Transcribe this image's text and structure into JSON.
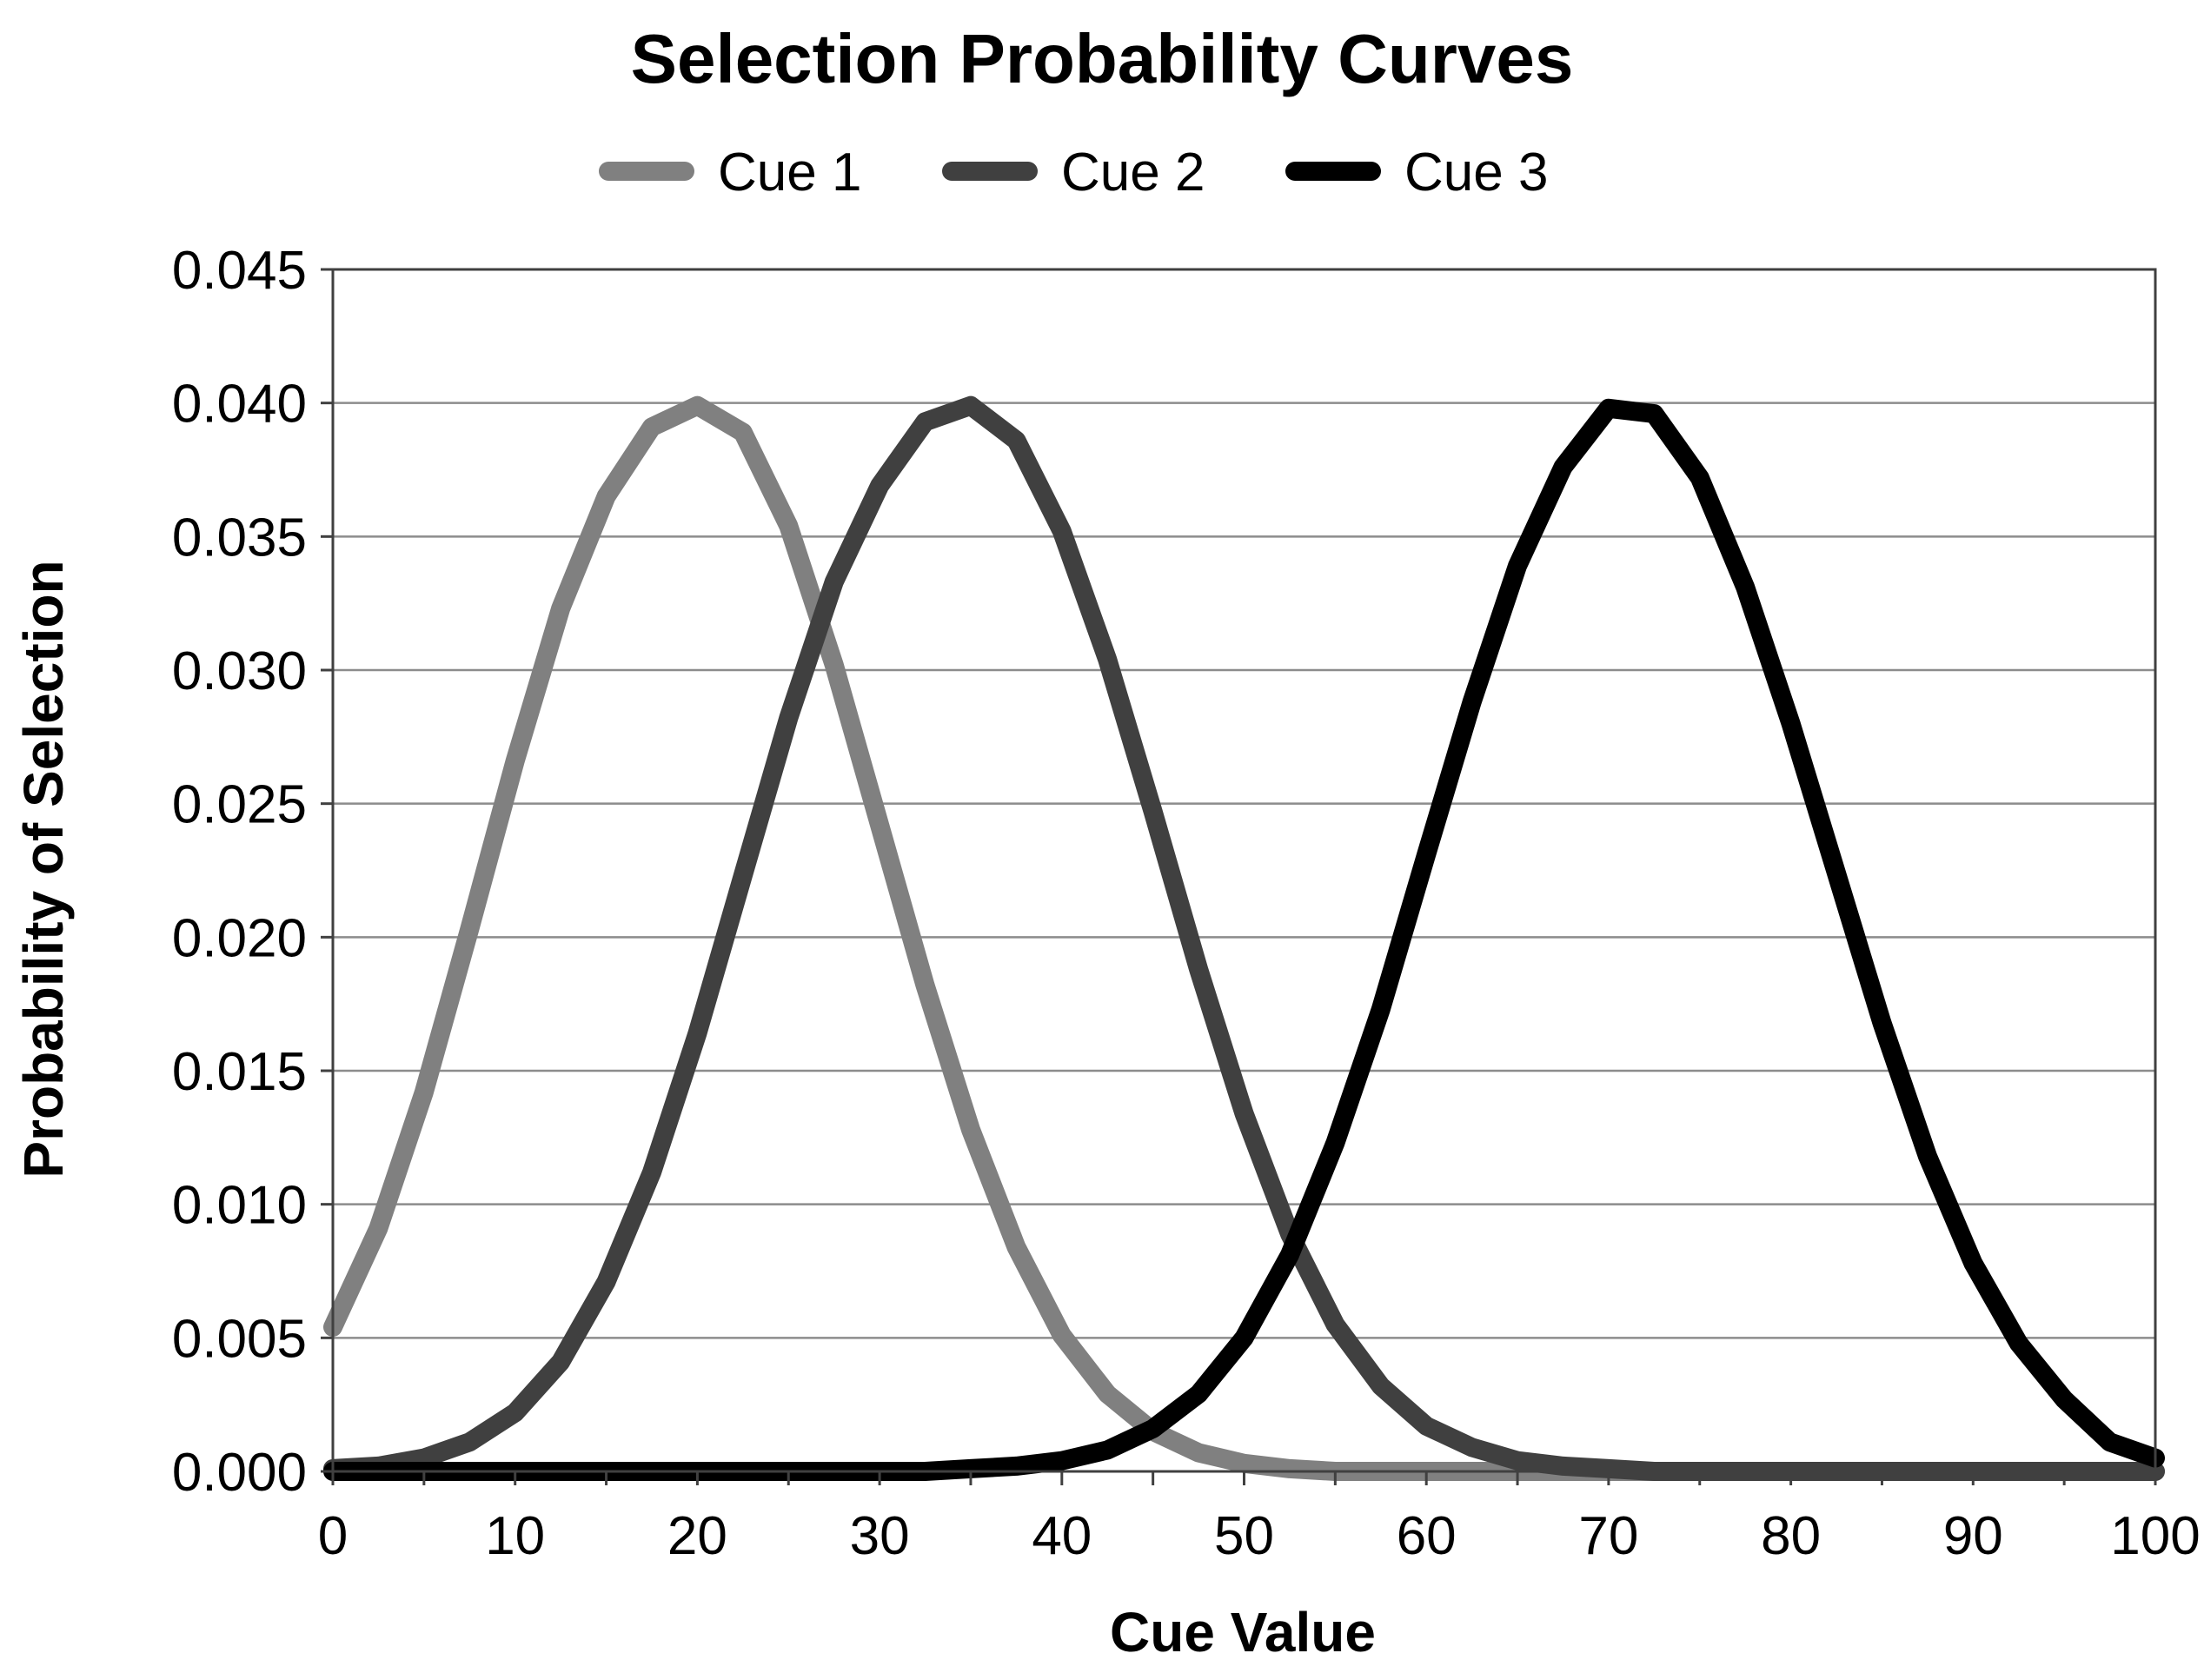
{
  "chart_data": {
    "type": "line",
    "title": "Selection Probability Curves",
    "xlabel": "Cue Value",
    "ylabel": "Probability of Selection",
    "xlim": [
      0,
      100
    ],
    "ylim": [
      0,
      0.045
    ],
    "x_ticks": [
      "0",
      "10",
      "20",
      "30",
      "40",
      "50",
      "60",
      "70",
      "80",
      "90",
      "100"
    ],
    "y_ticks": [
      "0.000",
      "0.005",
      "0.010",
      "0.015",
      "0.020",
      "0.025",
      "0.030",
      "0.035",
      "0.040",
      "0.045"
    ],
    "grid": "horizontal",
    "legend_position": "top",
    "x": [
      0,
      2.5,
      5,
      7.5,
      10,
      12.5,
      15,
      17.5,
      20,
      22.5,
      25,
      27.5,
      30,
      32.5,
      35,
      37.5,
      40,
      42.5,
      45,
      47.5,
      50,
      52.5,
      55,
      57.5,
      60,
      62.5,
      65,
      67.5,
      70,
      72.5,
      75,
      77.5,
      80,
      82.5,
      85,
      87.5,
      90,
      92.5,
      95,
      97.5,
      100
    ],
    "series": [
      {
        "name": "Cue 1",
        "color": "#808080",
        "values": [
          0.0054,
          0.0091,
          0.0142,
          0.0203,
          0.0266,
          0.0323,
          0.0365,
          0.0391,
          0.0399,
          0.0389,
          0.0354,
          0.0302,
          0.0242,
          0.0182,
          0.0128,
          0.0084,
          0.0051,
          0.0029,
          0.0015,
          0.0007,
          0.0003,
          0.0001,
          0.0,
          0.0,
          0.0,
          0.0,
          0.0,
          0.0,
          0.0,
          0.0,
          0.0,
          0.0,
          0.0,
          0.0,
          0.0,
          0.0,
          0.0,
          0.0,
          0.0,
          0.0,
          0.0
        ]
      },
      {
        "name": "Cue 2",
        "color": "#404040",
        "values": [
          0.0001,
          0.0002,
          0.0005,
          0.0011,
          0.0022,
          0.0041,
          0.0071,
          0.0112,
          0.0164,
          0.0223,
          0.0282,
          0.0333,
          0.0369,
          0.0393,
          0.0399,
          0.0386,
          0.0352,
          0.0304,
          0.0247,
          0.0188,
          0.0134,
          0.0089,
          0.0055,
          0.0032,
          0.0017,
          0.0009,
          0.0004,
          0.0002,
          0.0001,
          0.0,
          0.0,
          0.0,
          0.0,
          0.0,
          0.0,
          0.0,
          0.0,
          0.0,
          0.0,
          0.0,
          0.0
        ]
      },
      {
        "name": "Cue 3",
        "color": "#000000",
        "values": [
          0.0,
          0.0,
          0.0,
          0.0,
          0.0,
          0.0,
          0.0,
          0.0,
          0.0,
          0.0,
          0.0,
          0.0,
          0.0,
          0.0,
          0.0001,
          0.0002,
          0.0004,
          0.0008,
          0.0016,
          0.0029,
          0.005,
          0.0081,
          0.0123,
          0.0173,
          0.0231,
          0.0288,
          0.0339,
          0.0376,
          0.0398,
          0.0396,
          0.0372,
          0.0331,
          0.028,
          0.0224,
          0.0168,
          0.0118,
          0.0078,
          0.0048,
          0.0027,
          0.0011,
          0.0005
        ]
      }
    ]
  }
}
